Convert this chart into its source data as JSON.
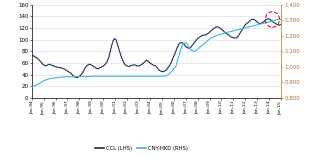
{
  "ylim_left": [
    0,
    160
  ],
  "ylim_right": [
    0.8,
    1.4
  ],
  "yticks_left": [
    0,
    20,
    40,
    60,
    80,
    100,
    120,
    140,
    160
  ],
  "yticks_right": [
    0.8,
    0.9,
    1.0,
    1.1,
    1.2,
    1.3,
    1.4
  ],
  "xtick_labels": [
    "Jan-94",
    "Jan-95",
    "Jan-96",
    "Jan-97",
    "Jan-98",
    "Jan-99",
    "Jan-00",
    "Jan-01",
    "Jan-02",
    "Jan-03",
    "Jan-04",
    "Jan-05",
    "Jan-06",
    "Jan-07",
    "Jan-08",
    "Jan-09",
    "Jan-10",
    "Jan-11",
    "Jan-12",
    "Jan-13",
    "Jan-14",
    "Jan-15"
  ],
  "ccl_color": "#1c3050",
  "cny_color": "#38b8e0",
  "circle_color": "#cc2222",
  "background_color": "#ffffff",
  "grid_color": "#d8d8d8",
  "legend_ccl": "CCL (LHS)",
  "legend_cny": "CNY-HKD (RHS)",
  "ccl_data": [
    74,
    72,
    70,
    68,
    65,
    62,
    58,
    56,
    55,
    57,
    58,
    56,
    55,
    54,
    53,
    52,
    52,
    51,
    50,
    48,
    46,
    44,
    42,
    38,
    36,
    35,
    36,
    38,
    42,
    47,
    53,
    56,
    58,
    57,
    55,
    53,
    51,
    50,
    52,
    53,
    55,
    58,
    62,
    70,
    83,
    95,
    102,
    100,
    90,
    80,
    70,
    63,
    57,
    55,
    54,
    55,
    56,
    57,
    56,
    55,
    55,
    57,
    59,
    62,
    65,
    63,
    60,
    58,
    56,
    55,
    52,
    48,
    46,
    45,
    46,
    48,
    52,
    56,
    62,
    70,
    77,
    85,
    92,
    95,
    95,
    92,
    88,
    86,
    85,
    88,
    92,
    96,
    100,
    103,
    105,
    107,
    108,
    108,
    110,
    112,
    115,
    118,
    120,
    122,
    122,
    120,
    118,
    115,
    112,
    110,
    108,
    105,
    104,
    103,
    103,
    105,
    110,
    115,
    120,
    125,
    128,
    130,
    133,
    135,
    135,
    133,
    130,
    128,
    128,
    130,
    132,
    135,
    136,
    135,
    132,
    130,
    128,
    126,
    125,
    126
  ],
  "cny_data": [
    0.87,
    0.876,
    0.882,
    0.888,
    0.893,
    0.9,
    0.908,
    0.914,
    0.918,
    0.922,
    0.924,
    0.926,
    0.928,
    0.93,
    0.932,
    0.933,
    0.934,
    0.935,
    0.936,
    0.936,
    0.937,
    0.937,
    0.937,
    0.938,
    0.938,
    0.938,
    0.938,
    0.938,
    0.938,
    0.938,
    0.938,
    0.938,
    0.939,
    0.939,
    0.94,
    0.94,
    0.94,
    0.94,
    0.94,
    0.94,
    0.94,
    0.94,
    0.94,
    0.94,
    0.94,
    0.94,
    0.94,
    0.94,
    0.94,
    0.94,
    0.94,
    0.94,
    0.94,
    0.94,
    0.94,
    0.94,
    0.94,
    0.94,
    0.94,
    0.94,
    0.94,
    0.94,
    0.94,
    0.94,
    0.94,
    0.94,
    0.94,
    0.94,
    0.94,
    0.94,
    0.94,
    0.94,
    0.94,
    0.945,
    0.95,
    0.96,
    0.975,
    0.99,
    1.0,
    1.04,
    1.08,
    1.12,
    1.15,
    1.155,
    1.15,
    1.13,
    1.11,
    1.105,
    1.1,
    1.105,
    1.115,
    1.125,
    1.135,
    1.145,
    1.155,
    1.165,
    1.175,
    1.185,
    1.19,
    1.195,
    1.2,
    1.205,
    1.21,
    1.213,
    1.216,
    1.219,
    1.222,
    1.225,
    1.228,
    1.231,
    1.234,
    1.237,
    1.24,
    1.243,
    1.246,
    1.249,
    1.252,
    1.255,
    1.258,
    1.261,
    1.264,
    1.267,
    1.27,
    1.273,
    1.276,
    1.279,
    1.282,
    1.285,
    1.288,
    1.291,
    1.294,
    1.297,
    1.3,
    1.305,
    1.308,
    1.305
  ]
}
